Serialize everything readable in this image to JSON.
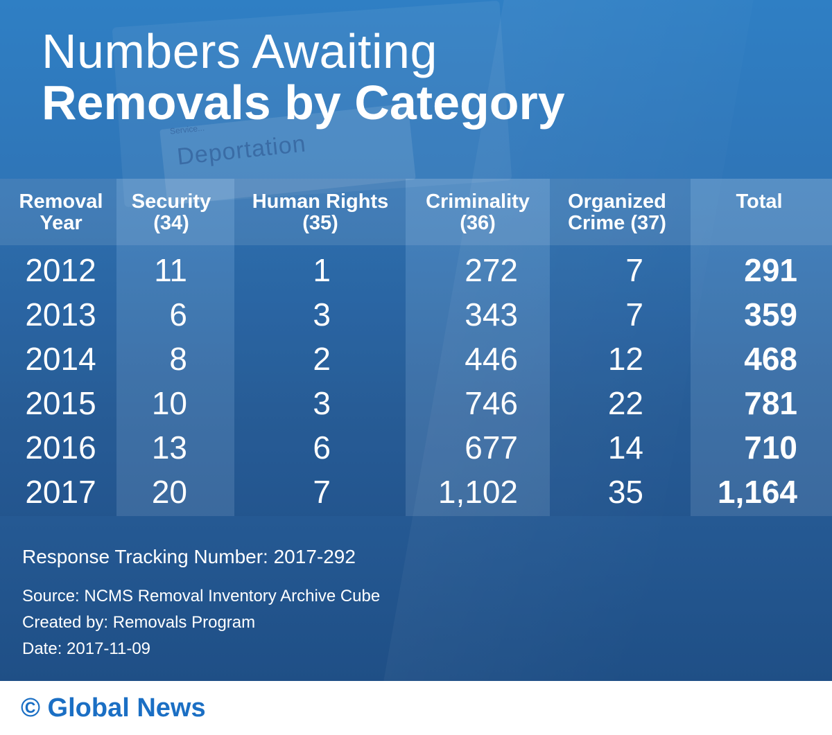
{
  "title": {
    "line1": "Numbers Awaiting",
    "line2": "Removals by Category"
  },
  "background": {
    "word": "Deportation",
    "sub": "Service..."
  },
  "chart_data": {
    "type": "table",
    "columns": [
      {
        "line1": "Removal",
        "line2": "Year"
      },
      {
        "line1": "Security",
        "line2": "(34)"
      },
      {
        "line1": "Human Rights",
        "line2": "(35)"
      },
      {
        "line1": "Criminality",
        "line2": "(36)"
      },
      {
        "line1": "Organized",
        "line2": "Crime (37)"
      },
      {
        "line1": "Total",
        "line2": ""
      }
    ],
    "rows": [
      {
        "year": "2012",
        "security": "11",
        "human_rights": "1",
        "criminality": "272",
        "organized_crime": "7",
        "total": "291"
      },
      {
        "year": "2013",
        "security": "6",
        "human_rights": "3",
        "criminality": "343",
        "organized_crime": "7",
        "total": "359"
      },
      {
        "year": "2014",
        "security": "8",
        "human_rights": "2",
        "criminality": "446",
        "organized_crime": "12",
        "total": "468"
      },
      {
        "year": "2015",
        "security": "10",
        "human_rights": "3",
        "criminality": "746",
        "organized_crime": "22",
        "total": "781"
      },
      {
        "year": "2016",
        "security": "13",
        "human_rights": "6",
        "criminality": "677",
        "organized_crime": "14",
        "total": "710"
      },
      {
        "year": "2017",
        "security": "20",
        "human_rights": "7",
        "criminality": "1,102",
        "organized_crime": "35",
        "total": "1,164"
      }
    ]
  },
  "notes": {
    "tracking": "Response Tracking Number: 2017-292",
    "source": "Source: NCMS Removal Inventory Archive Cube",
    "created": "Created by: Removals Program",
    "date": "Date: 2017-11-09"
  },
  "footer": {
    "brand": "© Global News"
  },
  "colors": {
    "background_top": "#2f7fc4",
    "background_bottom": "#1f4f86",
    "brand": "#1b6fc4"
  }
}
